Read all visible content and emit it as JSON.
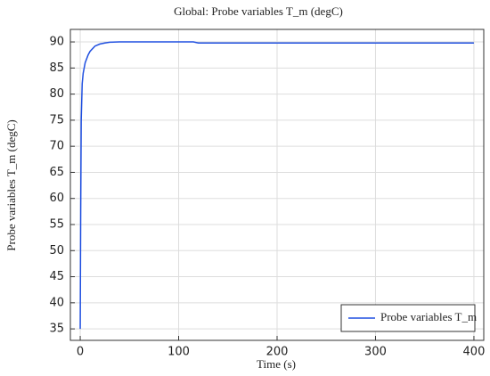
{
  "chart_data": {
    "type": "line",
    "title": "Global: Probe variables T_m (degC)",
    "x_label": "Time (s)",
    "y_label": "Probe variables T_m (degC)",
    "x": [
      0,
      0.5,
      1,
      2,
      3,
      5,
      8,
      10,
      15,
      20,
      25,
      30,
      40,
      60,
      100,
      115,
      120,
      200,
      300,
      400
    ],
    "series": [
      {
        "name": "Probe variables T_m",
        "color": "#1f4fe0",
        "values": [
          35,
          58,
          75,
          82,
          84,
          86,
          87.5,
          88.2,
          89.2,
          89.6,
          89.8,
          89.95,
          90,
          90,
          90,
          90,
          89.8,
          89.8,
          89.8,
          89.8
        ]
      }
    ],
    "xlim": [
      -10,
      410
    ],
    "xticks": [
      0,
      100,
      200,
      300,
      400
    ],
    "ylim": [
      32.8,
      92.4
    ],
    "yticks": [
      35,
      40,
      45,
      50,
      55,
      60,
      65,
      70,
      75,
      80,
      85,
      90
    ],
    "grid": true,
    "legend_position": "lower right"
  }
}
